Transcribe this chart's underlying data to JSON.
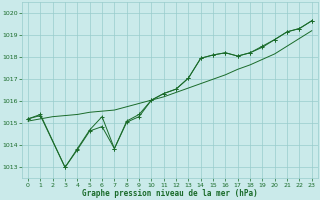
{
  "title": "Graphe pression niveau de la mer (hPa)",
  "bg_color": "#caeaea",
  "grid_color": "#99cccc",
  "line_color": "#1a6b2a",
  "xlim": [
    -0.5,
    23.5
  ],
  "ylim": [
    1012.5,
    1020.5
  ],
  "yticks": [
    1013,
    1014,
    1015,
    1016,
    1017,
    1018,
    1019,
    1020
  ],
  "xticks": [
    0,
    1,
    2,
    3,
    4,
    5,
    6,
    7,
    8,
    9,
    10,
    11,
    12,
    13,
    14,
    15,
    16,
    17,
    18,
    19,
    20,
    21,
    22,
    23
  ],
  "series_smooth": {
    "x": [
      0,
      1,
      2,
      3,
      4,
      5,
      6,
      7,
      8,
      9,
      10,
      11,
      12,
      13,
      14,
      15,
      16,
      17,
      18,
      19,
      20,
      21,
      22,
      23
    ],
    "y": [
      1015.1,
      1015.2,
      1015.3,
      1015.35,
      1015.4,
      1015.5,
      1015.55,
      1015.6,
      1015.75,
      1015.9,
      1016.05,
      1016.2,
      1016.4,
      1016.6,
      1016.8,
      1017.0,
      1017.2,
      1017.45,
      1017.65,
      1017.9,
      1018.15,
      1018.5,
      1018.85,
      1019.2
    ]
  },
  "series_jagged1": {
    "x": [
      0,
      1,
      3,
      4,
      5,
      6,
      7,
      8,
      9,
      10,
      11,
      12,
      13,
      14,
      15,
      16,
      17,
      18,
      19,
      20,
      21,
      22,
      23
    ],
    "y": [
      1015.2,
      1015.4,
      1013.0,
      1013.8,
      1014.65,
      1014.85,
      1013.85,
      1015.05,
      1015.3,
      1016.05,
      1016.35,
      1016.55,
      1017.05,
      1017.95,
      1018.1,
      1018.2,
      1018.05,
      1018.2,
      1018.45,
      1018.8,
      1019.15,
      1019.3,
      1019.65
    ]
  },
  "series_jagged2": {
    "x": [
      0,
      1,
      3,
      4,
      5,
      6,
      7,
      8,
      9,
      10,
      11,
      12,
      13,
      14,
      15,
      16,
      17,
      18,
      19,
      20,
      21,
      22,
      23
    ],
    "y": [
      1015.2,
      1015.35,
      1013.0,
      1013.85,
      1014.7,
      1015.3,
      1013.85,
      1015.1,
      1015.4,
      1016.05,
      1016.35,
      1016.55,
      1017.05,
      1017.95,
      1018.1,
      1018.2,
      1018.05,
      1018.2,
      1018.5,
      1018.8,
      1019.15,
      1019.3,
      1019.65
    ]
  }
}
